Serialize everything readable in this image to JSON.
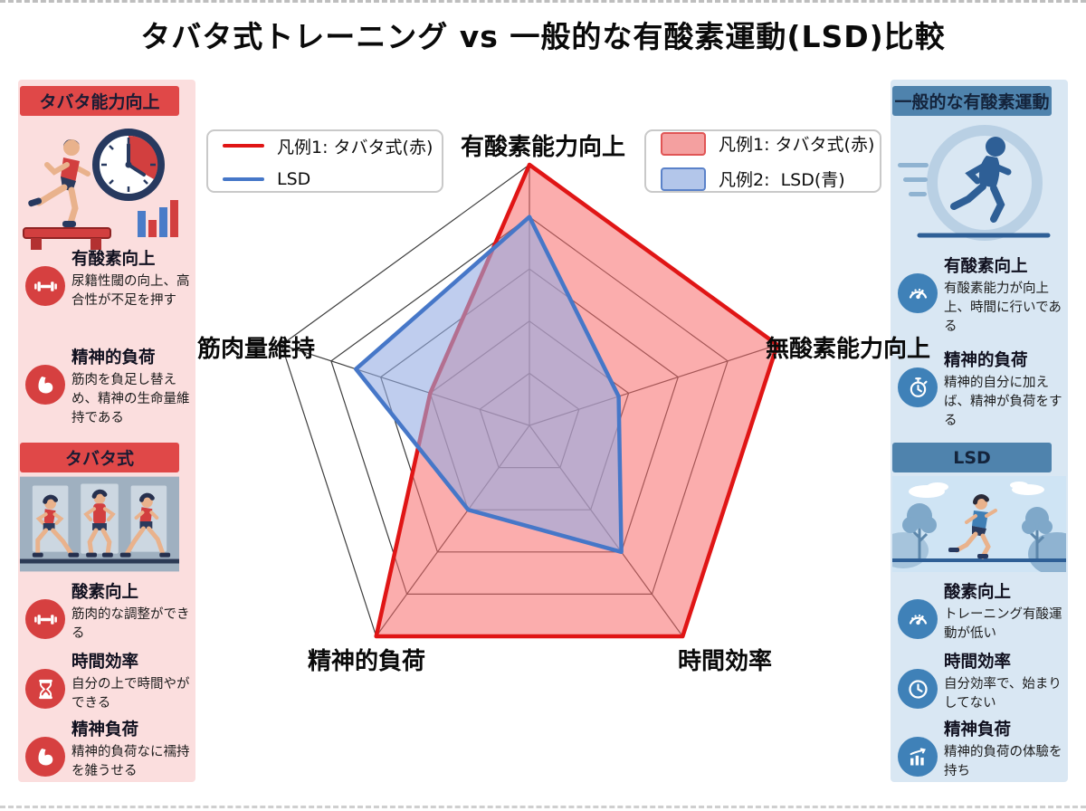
{
  "title": "タバタ式トレーニング vs 一般的な有酸素運動(LSD)比較",
  "colors": {
    "tabata_red": "#e01515",
    "tabata_fill": "rgba(247,106,106,0.55)",
    "lsd_blue": "#4677c8",
    "lsd_fill": "rgba(148,172,226,0.6)",
    "left_panel_bg": "#fbdede",
    "left_banner_bg": "#e04848",
    "right_panel_bg": "#d9e7f3",
    "right_banner_bg": "#4f83ad",
    "grid": "#3e3e3e"
  },
  "chart_data": {
    "type": "radar",
    "categories": [
      "有酸素能力向上",
      "無酸素能力向上",
      "時間効率",
      "精神的負荷",
      "筋肉量維持"
    ],
    "max": 5,
    "rings": 5,
    "grid": true,
    "series": [
      {
        "name": "タバタ式",
        "color": "#e01515",
        "fill": "rgba(247,106,106,0.55)",
        "values": [
          5,
          5,
          5,
          5,
          2
        ]
      },
      {
        "name": "LSD",
        "color": "#4677c8",
        "fill": "rgba(148,172,226,0.6)",
        "values": [
          4,
          1.8,
          3,
          2,
          3.5
        ]
      }
    ]
  },
  "legend_left": {
    "items": [
      {
        "label": "凡例1: タバタ式(赤)",
        "swatch": "red-line"
      },
      {
        "label": "LSD",
        "swatch": "blue-line"
      }
    ]
  },
  "legend_right": {
    "items": [
      {
        "label": "凡例1: タバタ式(赤)",
        "swatch": "red-box"
      },
      {
        "label": "凡例2:  LSD(青)",
        "swatch": "blue-box"
      }
    ]
  },
  "left_panel": {
    "sections": [
      {
        "header": "タバタ能力向上",
        "items": [
          {
            "icon": "dumbbell-icon",
            "title": "有酸素向上",
            "desc": "尿籍性閾の向上、高合性が不足を押す"
          },
          {
            "icon": "bicep-icon",
            "title": "精神的負荷",
            "desc": "筋肉を負足し替えめ、精神の生命量維持である"
          }
        ]
      },
      {
        "header": "タバタ式",
        "items": [
          {
            "icon": "dumbbell-icon",
            "title": "酸素向上",
            "desc": "筋肉的な調整ができる"
          },
          {
            "icon": "hourglass-icon",
            "title": "時間効率",
            "desc": "自分の上で時間やができる"
          },
          {
            "icon": "bicep-icon",
            "title": "精神負荷",
            "desc": "精神的負荷なに襦持を雑うせる"
          }
        ]
      }
    ]
  },
  "right_panel": {
    "sections": [
      {
        "header": "一般的な有酸素運動",
        "items": [
          {
            "icon": "gauge-icon",
            "title": "有酸素向上",
            "desc": "有酸素能力が向上上、時間に行いである"
          },
          {
            "icon": "stopwatch-icon",
            "title": "精神的負荷",
            "desc": "精神的自分に加えば、精神が負荷をする"
          }
        ]
      },
      {
        "header": "LSD",
        "items": [
          {
            "icon": "gauge-icon",
            "title": "酸素向上",
            "desc": "トレーニング有酸運動が低い"
          },
          {
            "icon": "clock-icon",
            "title": "時間効率",
            "desc": "自分効率で、始まりしてない"
          },
          {
            "icon": "chart-up-icon",
            "title": "精神負荷",
            "desc": "精神的負荷の体驗を持ち"
          }
        ]
      }
    ]
  }
}
